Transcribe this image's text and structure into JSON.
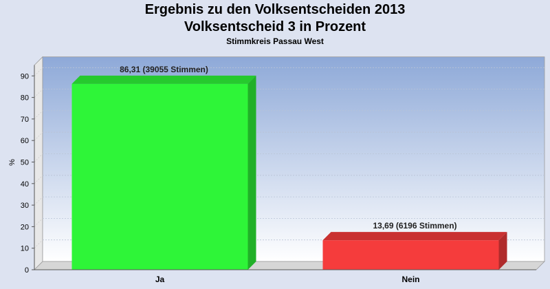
{
  "chart_data": {
    "type": "bar",
    "title": "Ergebnis zu den Volksentscheiden 2013",
    "title2": "Volksentscheid 3 in Prozent",
    "subtitle": "Stimmkreis Passau West",
    "ylabel": "%",
    "xlabel": "",
    "categories": [
      "Ja",
      "Nein"
    ],
    "values": [
      86.31,
      13.69
    ],
    "data_labels": [
      "86,31 (39055 Stimmen)",
      "13,69 (6196 Stimmen)"
    ],
    "colors": [
      "#2ef538",
      "#f53c3c"
    ],
    "ylim": [
      0,
      95
    ],
    "yticks": [
      0,
      10,
      20,
      30,
      40,
      50,
      60,
      70,
      80,
      90
    ],
    "grid": true,
    "legend": "none"
  }
}
